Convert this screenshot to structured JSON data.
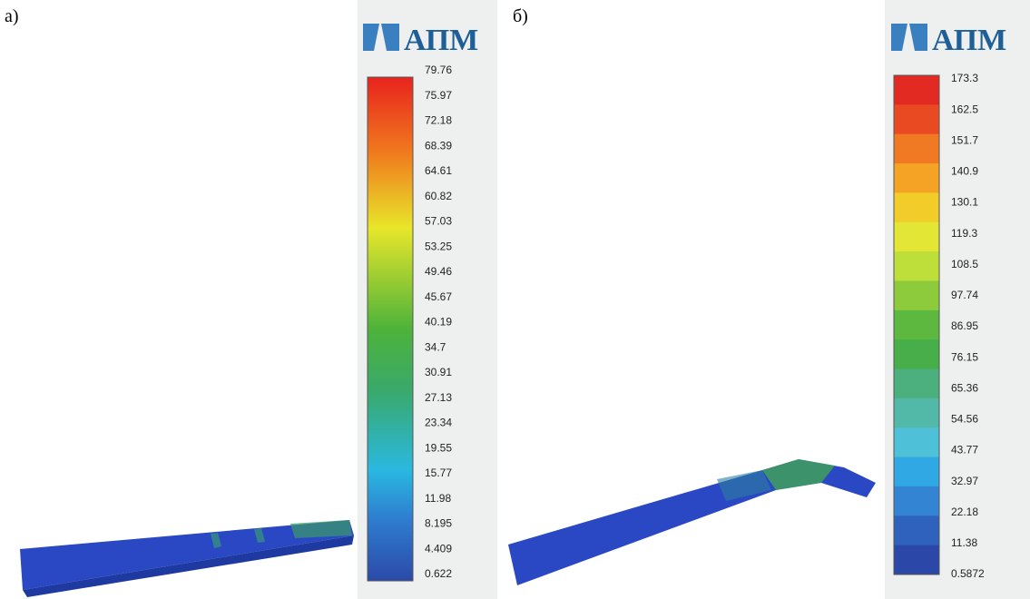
{
  "panels": [
    {
      "label": "а)",
      "logo": "АПМ",
      "legend_labels": [
        "79.76",
        "75.97",
        "72.18",
        "68.39",
        "64.61",
        "60.82",
        "57.03",
        "53.25",
        "49.46",
        "45.67",
        "40.19",
        "34.7",
        "30.91",
        "27.13",
        "23.34",
        "19.55",
        "15.77",
        "11.98",
        "8.195",
        "4.409",
        "0.622"
      ]
    },
    {
      "label": "б)",
      "logo": "АПМ",
      "legend_labels": [
        "173.3",
        "162.5",
        "151.7",
        "140.9",
        "130.1",
        "119.3",
        "108.5",
        "97.74",
        "86.95",
        "76.15",
        "65.36",
        "54.56",
        "43.77",
        "32.97",
        "22.18",
        "11.38",
        "0.5872"
      ]
    }
  ]
}
